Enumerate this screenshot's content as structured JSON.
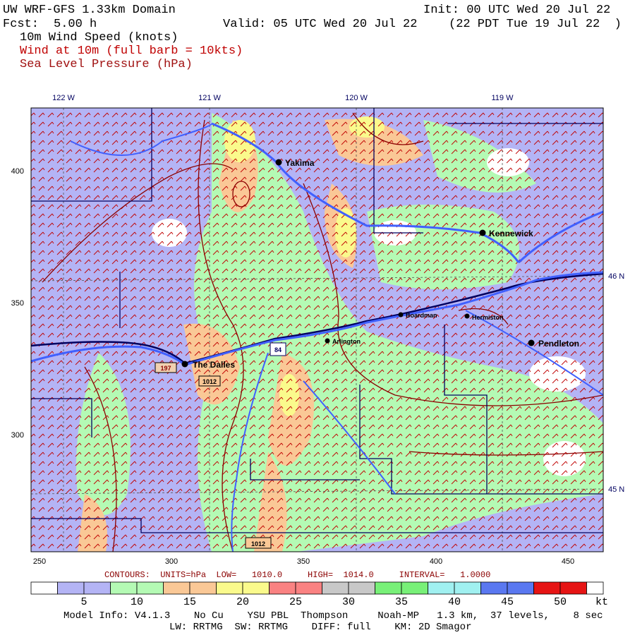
{
  "header": {
    "title": "UW WRF-GFS 1.33km Domain",
    "init": "Init: 00 UTC Wed 20 Jul 22",
    "fcst_label": "Fcst:",
    "fcst": "5.00 h",
    "valid": "Valid: 05 UTC Wed 20 Jul 22",
    "local_time": "(22 PDT Tue 19 Jul 22  )",
    "fields": [
      "10m Wind Speed (knots)",
      "Wind at 10m (full barb = 10kts)",
      "Sea Level Pressure (hPa)"
    ]
  },
  "map": {
    "top_labels": [
      "122 W",
      "121 W",
      "120 W",
      "119 W"
    ],
    "left_labels": [
      "400",
      "350",
      "300"
    ],
    "bottom_labels": [
      "250",
      "300",
      "350",
      "400",
      "450"
    ],
    "right_labels": [
      "46 N",
      "45 N"
    ],
    "cities": [
      "Yakima",
      "Kennewick",
      "Boardman",
      "Hermiston",
      "Pendleton",
      "Arlington",
      "The Dalles"
    ],
    "shields": [
      "84",
      "197"
    ],
    "contour_labels": [
      "1012",
      "1012"
    ]
  },
  "contours_info": "CONTOURS:  UNITS=hPa  LOW=   1010.0     HIGH=  1014.0     INTERVAL=   1.0000",
  "colorbar": {
    "labels": [
      "5",
      "10",
      "15",
      "20",
      "25",
      "30",
      "35",
      "40",
      "45",
      "50"
    ],
    "unit": "kt",
    "colors": [
      "#ffffff",
      "#b4b4f5",
      "#b4b4f5",
      "#b4fab4",
      "#b4fab4",
      "#fac896",
      "#fac896",
      "#fafa8c",
      "#fafa8c",
      "#fa8282",
      "#fa8282",
      "#c8c8c8",
      "#c8c8c8",
      "#78f078",
      "#78f078",
      "#a0f0f0",
      "#a0f0f0",
      "#5a78f0",
      "#5a78f0",
      "#e61414",
      "#e61414",
      "#ffffff"
    ]
  },
  "footer": [
    "Model Info: V4.1.3    No Cu    YSU PBL  Thompson     Noah-MP   1.3 km,  37 levels,    8 sec",
    "LW: RRTMG  SW: RRTMG    DIFF: full    KM: 2D Smagor"
  ]
}
